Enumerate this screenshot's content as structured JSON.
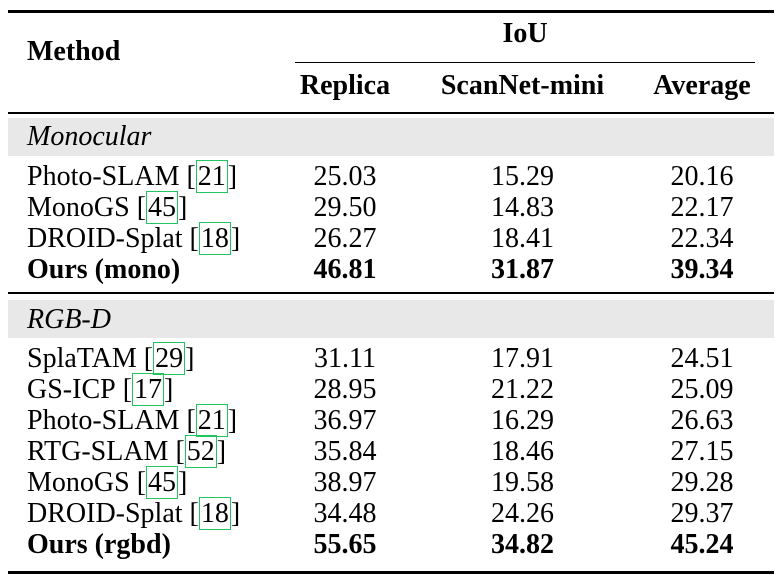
{
  "header": {
    "method": "Method",
    "group": "IoU",
    "columns": [
      "Replica",
      "ScanNet-mini",
      "Average"
    ]
  },
  "sections": [
    {
      "title": "Monocular",
      "rows": [
        {
          "name": "Photo-SLAM",
          "cite": "21",
          "values": [
            "25.03",
            "15.29",
            "20.16"
          ],
          "bold": false
        },
        {
          "name": "MonoGS",
          "cite": "45",
          "values": [
            "29.50",
            "14.83",
            "22.17"
          ],
          "bold": false
        },
        {
          "name": "DROID-Splat",
          "cite": "18",
          "values": [
            "26.27",
            "18.41",
            "22.34"
          ],
          "bold": false
        },
        {
          "name": "Ours (mono)",
          "cite": "",
          "values": [
            "46.81",
            "31.87",
            "39.34"
          ],
          "bold": true
        }
      ]
    },
    {
      "title": "RGB-D",
      "rows": [
        {
          "name": "SplaTAM",
          "cite": "29",
          "values": [
            "31.11",
            "17.91",
            "24.51"
          ],
          "bold": false
        },
        {
          "name": "GS-ICP",
          "cite": "17",
          "values": [
            "28.95",
            "21.22",
            "25.09"
          ],
          "bold": false
        },
        {
          "name": "Photo-SLAM",
          "cite": "21",
          "values": [
            "36.97",
            "16.29",
            "26.63"
          ],
          "bold": false
        },
        {
          "name": "RTG-SLAM",
          "cite": "52",
          "values": [
            "35.84",
            "18.46",
            "27.15"
          ],
          "bold": false
        },
        {
          "name": "MonoGS",
          "cite": "45",
          "values": [
            "38.97",
            "19.58",
            "29.28"
          ],
          "bold": false
        },
        {
          "name": "DROID-Splat",
          "cite": "18",
          "values": [
            "34.48",
            "24.26",
            "29.37"
          ],
          "bold": false
        },
        {
          "name": "Ours (rgbd)",
          "cite": "",
          "values": [
            "55.65",
            "34.82",
            "45.24"
          ],
          "bold": true
        }
      ]
    }
  ]
}
